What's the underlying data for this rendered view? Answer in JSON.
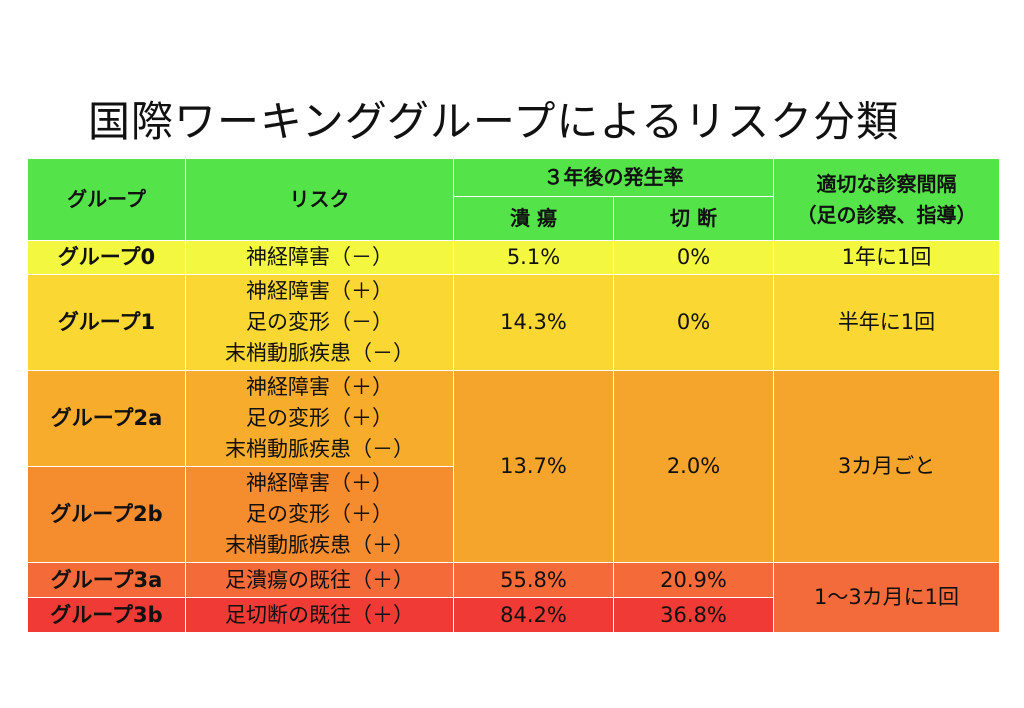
{
  "title": "国際ワーキンググループによるリスク分類",
  "headers": {
    "group": "グループ",
    "risk": "リスク",
    "rate3y": "３年後の発生率",
    "ulcer": "潰 瘍",
    "amputation": "切 断",
    "interval_line1": "適切な診察間隔",
    "interval_line2": "（足の診察、指導）"
  },
  "rows": {
    "g0": {
      "group": "グループ0",
      "risk": [
        "神経障害（－）"
      ],
      "ulcer": "5.1%",
      "amputation": "0%",
      "interval": "1年に1回"
    },
    "g1": {
      "group": "グループ1",
      "risk": [
        "神経障害（＋）",
        "足の変形（－）",
        "末梢動脈疾患（－）"
      ],
      "ulcer": "14.3%",
      "amputation": "0%",
      "interval": "半年に1回"
    },
    "g2a": {
      "group": "グループ2a",
      "risk": [
        "神経障害（＋）",
        "足の変形（＋）",
        "末梢動脈疾患（－）"
      ]
    },
    "g2b": {
      "group": "グループ2b",
      "risk": [
        "神経障害（＋）",
        "足の変形（＋）",
        "末梢動脈疾患（＋）"
      ]
    },
    "g2": {
      "ulcer": "13.7%",
      "amputation": "2.0%",
      "interval": "3カ月ごと"
    },
    "g3a": {
      "group": "グループ3a",
      "risk": [
        "足潰瘍の既往（＋）"
      ],
      "ulcer": "55.8%",
      "amputation": "20.9%"
    },
    "g3b": {
      "group": "グループ3b",
      "risk": [
        "足切断の既往（＋）"
      ],
      "ulcer": "84.2%",
      "amputation": "36.8%"
    },
    "g3": {
      "interval": "1～3カ月に1回"
    }
  },
  "colors": {
    "header": "#55e34a",
    "group0": "#f3f73f",
    "group1": "#fad733",
    "group2a": "#f8ac2b",
    "group2b": "#f58c2d",
    "group3a": "#f46a39",
    "group3b": "#ef3a35"
  }
}
